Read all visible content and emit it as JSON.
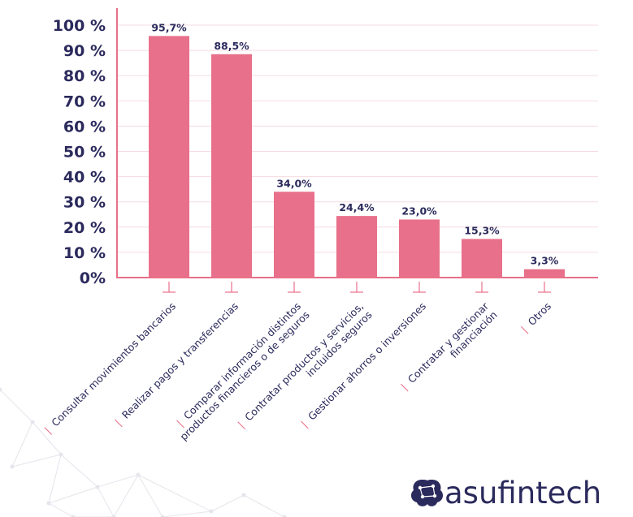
{
  "colors": {
    "bar": "#e8708a",
    "text": "#2b2a5c",
    "axis": "#e8708a",
    "grid": "#f6dbe1",
    "network": "#e5e5ec"
  },
  "brand": {
    "name": "asufintech",
    "icon": "brain-network-icon"
  },
  "chart_data": {
    "type": "bar",
    "title": "",
    "xlabel": "",
    "ylabel": "",
    "ylim": [
      0,
      100
    ],
    "yticks": [
      {
        "value": 0,
        "label": "0%"
      },
      {
        "value": 10,
        "label": "10 %"
      },
      {
        "value": 20,
        "label": "20 %"
      },
      {
        "value": 30,
        "label": "30 %"
      },
      {
        "value": 40,
        "label": "40 %"
      },
      {
        "value": 50,
        "label": "50 %"
      },
      {
        "value": 60,
        "label": "60 %"
      },
      {
        "value": 70,
        "label": "70 %"
      },
      {
        "value": 80,
        "label": "80 %"
      },
      {
        "value": 90,
        "label": "90 %"
      },
      {
        "value": 100,
        "label": "100 %"
      }
    ],
    "grid": true,
    "categories": [
      [
        "Consultar movimientos bancarios"
      ],
      [
        "Realizar pagos y transferencias"
      ],
      [
        "Comparar información distintos",
        "productos financieros o de seguros"
      ],
      [
        "Contratar productos y servicios,",
        "incluidos seguros"
      ],
      [
        "Gestionar ahorros o inversiones"
      ],
      [
        "Contratar y gestionar",
        "financiación"
      ],
      [
        "Otros"
      ]
    ],
    "values": [
      95.7,
      88.5,
      34.0,
      24.4,
      23.0,
      15.3,
      3.3
    ],
    "value_labels": [
      "95,7%",
      "88,5%",
      "34,0%",
      "24,4%",
      "23,0%",
      "15,3%",
      "3,3%"
    ]
  }
}
